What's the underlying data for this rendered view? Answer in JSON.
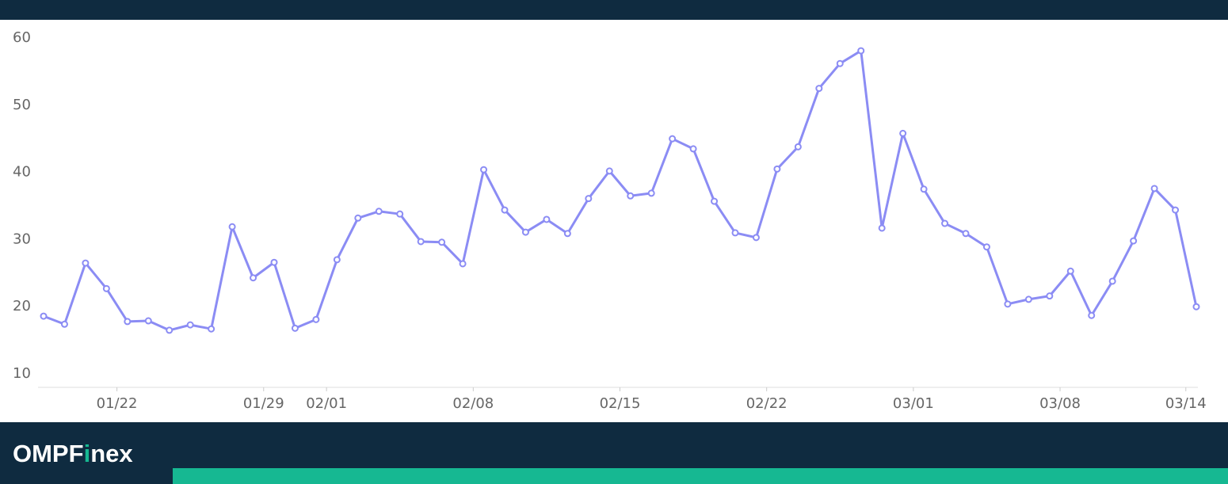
{
  "chart_data": {
    "type": "line",
    "categories": [
      null,
      null,
      null,
      "01/22",
      null,
      null,
      null,
      null,
      null,
      null,
      "01/29",
      null,
      null,
      "02/01",
      null,
      null,
      null,
      null,
      null,
      null,
      "02/08",
      null,
      null,
      null,
      null,
      null,
      null,
      "02/15",
      null,
      null,
      null,
      null,
      null,
      null,
      "02/22",
      null,
      null,
      null,
      null,
      null,
      null,
      "03/01",
      null,
      null,
      null,
      null,
      null,
      null,
      "03/08",
      null,
      null,
      null,
      null,
      null,
      "03/14",
      null
    ],
    "series": [
      {
        "color": "#8b8cf4",
        "values": [
          18.6,
          17.4,
          26.5,
          22.7,
          17.8,
          17.9,
          16.5,
          17.3,
          16.7,
          31.9,
          24.3,
          26.6,
          16.8,
          18.1,
          27.0,
          33.2,
          34.2,
          33.8,
          29.7,
          29.6,
          26.4,
          40.4,
          34.4,
          31.1,
          33.0,
          30.9,
          36.1,
          40.2,
          36.5,
          36.9,
          45.0,
          43.5,
          35.7,
          31.0,
          30.3,
          40.5,
          43.8,
          52.5,
          56.2,
          58.1,
          31.7,
          45.8,
          37.5,
          32.4,
          30.9,
          28.9,
          20.4,
          21.1,
          21.6,
          25.3,
          18.7,
          23.8,
          29.8,
          37.6,
          34.4,
          20.0
        ]
      }
    ],
    "ylim": [
      8,
      62
    ],
    "yticks": [
      10,
      20,
      30,
      40,
      50,
      60
    ],
    "grid": false
  },
  "footer": {
    "logo": [
      "OMPF",
      "i",
      "nex"
    ]
  }
}
